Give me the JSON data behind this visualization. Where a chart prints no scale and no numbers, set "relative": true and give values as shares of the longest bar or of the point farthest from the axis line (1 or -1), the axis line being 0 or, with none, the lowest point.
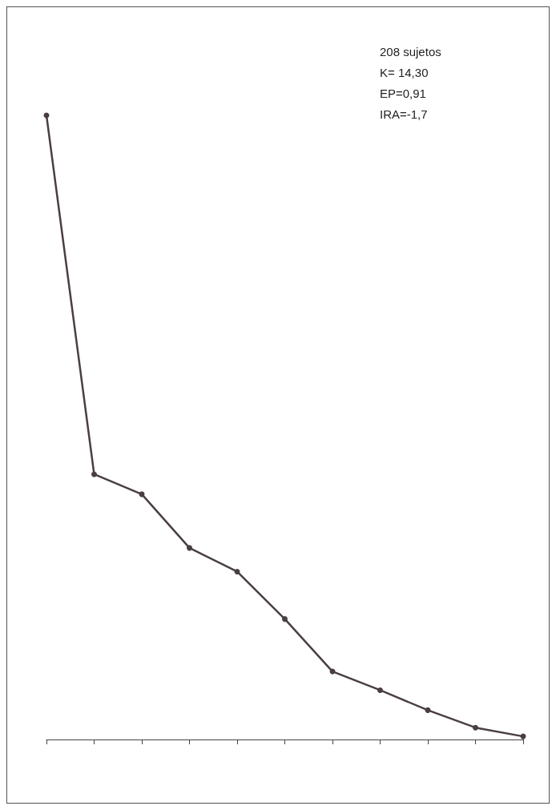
{
  "chart_data": {
    "type": "line",
    "relative": true,
    "categories": [
      null,
      null,
      null,
      null,
      null,
      null,
      null,
      null,
      null,
      null,
      null
    ],
    "series": [
      {
        "color": "#4a3f40",
        "values": [
          1,
          0.425,
          0.393,
          0.307,
          0.269,
          0.193,
          0.109,
          0.079,
          0.047,
          0.019,
          0.005
        ]
      }
    ],
    "marker": "circle",
    "line_style": "solid",
    "grid": false,
    "annotations": [
      "208 sujetos",
      "K= 14,30",
      "EP=0,91",
      "IRA=-1,7"
    ]
  }
}
